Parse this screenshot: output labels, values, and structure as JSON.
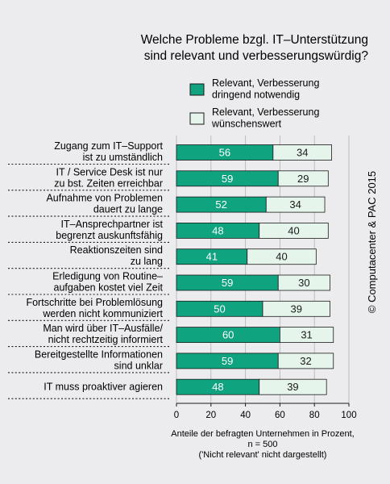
{
  "title": [
    "Welche Probleme bzgl. IT–Unterstützung",
    "sind relevant und verbesserungswürdig?"
  ],
  "legend": [
    {
      "lines": [
        "Relevant, Verbesserung",
        "dringend notwendig"
      ],
      "color": "#10a37f"
    },
    {
      "lines": [
        "Relevant, Verbesserung",
        "wünschenswert"
      ],
      "color": "#e6f5ec"
    }
  ],
  "footer": [
    "Anteile der befragten Unternehmen in Prozent,",
    "n = 500",
    "('Nicht relevant' nicht dargestellt)"
  ],
  "copyright": "© Computacenter & PAC 2015",
  "colors": {
    "bar_dark": "#10a37f",
    "bar_light": "#e6f5ec",
    "background": "#ececee",
    "text": "#1a1a1a"
  },
  "chart_data": {
    "type": "bar",
    "orientation": "horizontal",
    "stacked": true,
    "categories": [
      [
        "Zugang zum IT–Support",
        "ist zu umständlich"
      ],
      [
        "IT / Service Desk ist nur",
        "zu bst. Zeiten erreichbar"
      ],
      [
        "Aufnahme von Problemen",
        "dauert zu lange"
      ],
      [
        "IT–Ansprechpartner ist",
        "begrenzt auskunftsfähig"
      ],
      [
        "Reaktionszeiten sind",
        "zu lang"
      ],
      [
        "Erledigung von Routine–",
        "aufgaben kostet viel Zeit"
      ],
      [
        "Fortschritte bei Problemlösung",
        "werden nicht kommuniziert"
      ],
      [
        "Man wird über IT–Ausfälle/",
        "nicht rechtzeitig informiert"
      ],
      [
        "Bereitgestellte Informationen",
        "sind unklar"
      ],
      [
        "IT muss proaktiver agieren"
      ]
    ],
    "series": [
      {
        "name": "Relevant, Verbesserung dringend notwendig",
        "values": [
          56,
          59,
          52,
          48,
          41,
          59,
          50,
          60,
          59,
          48
        ]
      },
      {
        "name": "Relevant, Verbesserung wünschenswert",
        "values": [
          34,
          29,
          34,
          40,
          40,
          30,
          39,
          31,
          32,
          39
        ]
      }
    ],
    "xlim": [
      0,
      100
    ],
    "xticks": [
      0,
      20,
      40,
      60,
      80,
      100
    ],
    "gridlines": true,
    "legend_position": "top-right"
  }
}
